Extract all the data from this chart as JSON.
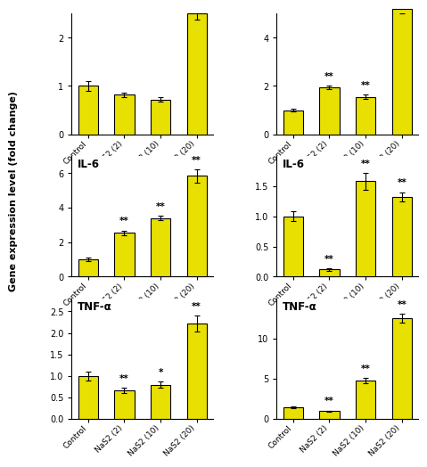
{
  "bar_color": "#E8E000",
  "bar_edgecolor": "black",
  "bar_linewidth": 0.8,
  "bar_width": 0.55,
  "x_labels": [
    "Control",
    "NaS2 (2)",
    "NaS2 (10)",
    "NaS2 (20)"
  ],
  "panels": [
    {
      "title": "",
      "values": [
        1.0,
        0.82,
        0.72,
        2.5
      ],
      "errors": [
        0.1,
        0.05,
        0.05,
        0.13
      ],
      "ylim": [
        0,
        2.5
      ],
      "yticks": [
        0,
        1,
        2
      ],
      "sig": [
        "",
        "",
        "",
        ""
      ]
    },
    {
      "title": "",
      "values": [
        1.0,
        1.95,
        1.55,
        5.2
      ],
      "errors": [
        0.05,
        0.07,
        0.08,
        0.2
      ],
      "ylim": [
        0,
        5.0
      ],
      "yticks": [
        0,
        2,
        4
      ],
      "sig": [
        "",
        "**",
        "**",
        ""
      ]
    },
    {
      "title": "IL-6",
      "values": [
        1.0,
        2.55,
        3.4,
        5.85
      ],
      "errors": [
        0.1,
        0.13,
        0.12,
        0.38
      ],
      "ylim": [
        0,
        7.0
      ],
      "yticks": [
        0,
        2,
        4,
        6
      ],
      "sig": [
        "",
        "**",
        "**",
        "**"
      ]
    },
    {
      "title": "IL-6",
      "values": [
        1.0,
        0.12,
        1.58,
        1.32
      ],
      "errors": [
        0.08,
        0.02,
        0.14,
        0.08
      ],
      "ylim": [
        0,
        2.0
      ],
      "yticks": [
        0.0,
        0.5,
        1.0,
        1.5
      ],
      "sig": [
        "",
        "**",
        "**",
        "**"
      ]
    },
    {
      "title": "TNF-α",
      "values": [
        1.0,
        0.67,
        0.8,
        2.22
      ],
      "errors": [
        0.1,
        0.06,
        0.07,
        0.18
      ],
      "ylim": [
        0,
        2.8
      ],
      "yticks": [
        0.0,
        0.5,
        1.0,
        1.5,
        2.0,
        2.5
      ],
      "sig": [
        "",
        "**",
        "*",
        "**"
      ]
    },
    {
      "title": "TNF-α",
      "values": [
        1.5,
        1.0,
        4.8,
        12.5
      ],
      "errors": [
        0.1,
        0.08,
        0.35,
        0.55
      ],
      "ylim": [
        0,
        15.0
      ],
      "yticks": [
        0,
        5,
        10
      ],
      "sig": [
        "",
        "**",
        "**",
        "**"
      ]
    }
  ],
  "ylabel": "Gene expression level (fold change)",
  "background_color": "white",
  "title_fontsize": 8.5,
  "tick_fontsize": 7.0,
  "label_fontsize": 8.0,
  "sig_fontsize": 7.5,
  "xtick_fontsize": 6.5
}
